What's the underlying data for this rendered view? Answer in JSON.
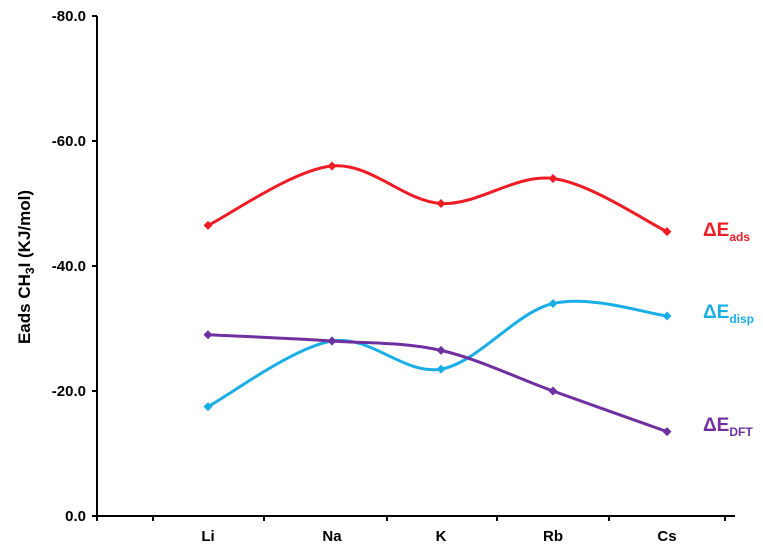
{
  "chart_data": {
    "type": "line",
    "categories": [
      "Li",
      "Na",
      "K",
      "Rb",
      "Cs"
    ],
    "ylim": [
      0,
      -80
    ],
    "y_reversed": true,
    "yticks": [
      "-80.0",
      "-60.0",
      "-40.0",
      "-20.0",
      "0.0"
    ],
    "ytick_values": [
      -80,
      -60,
      -40,
      -20,
      0
    ],
    "ylabel": {
      "main": "Eads CH",
      "sub": "3",
      "tail": "I (KJ/mol)"
    },
    "xlabel": "",
    "grid": false,
    "legend": "labels at right end of each series",
    "series": [
      {
        "name": "ΔE",
        "name_sub": "ads",
        "color": "#ee1c25",
        "values": [
          -46.5,
          -56.0,
          -50.0,
          -54.0,
          -45.5
        ]
      },
      {
        "name": "ΔE",
        "name_sub": "disp",
        "color": "#1aaee6",
        "values": [
          -17.5,
          -28.0,
          -23.5,
          -34.0,
          -32.0
        ]
      },
      {
        "name": "ΔE",
        "name_sub": "DFT",
        "color": "#7030a0",
        "values": [
          -29.0,
          -28.0,
          -26.5,
          -20.0,
          -13.5
        ]
      }
    ]
  }
}
